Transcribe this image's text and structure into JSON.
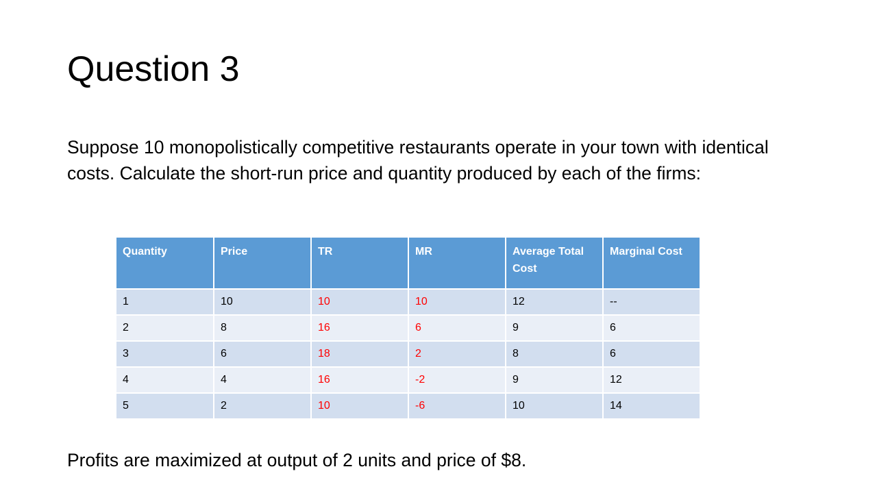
{
  "slide": {
    "title": "Question 3",
    "body": "Suppose 10 monopolistically competitive restaurants operate in your town with identical costs. Calculate the short-run price and quantity produced by each of the firms:",
    "conclusion": "Profits are maximized at output of 2 units and price of $8."
  },
  "table": {
    "headers": [
      "Quantity",
      "Price",
      "TR",
      "MR",
      "Average Total Cost",
      "Marginal Cost"
    ],
    "rows": [
      [
        "1",
        "10",
        "10",
        "10",
        "12",
        "--"
      ],
      [
        "2",
        "8",
        "16",
        "6",
        "9",
        "6"
      ],
      [
        "3",
        "6",
        "18",
        "2",
        "8",
        "6"
      ],
      [
        "4",
        "4",
        "16",
        "-2",
        "9",
        "12"
      ],
      [
        "5",
        "2",
        "10",
        "-6",
        "10",
        "14"
      ]
    ],
    "highlight_color": "#ff0000",
    "header_color": "#5b9bd5"
  }
}
